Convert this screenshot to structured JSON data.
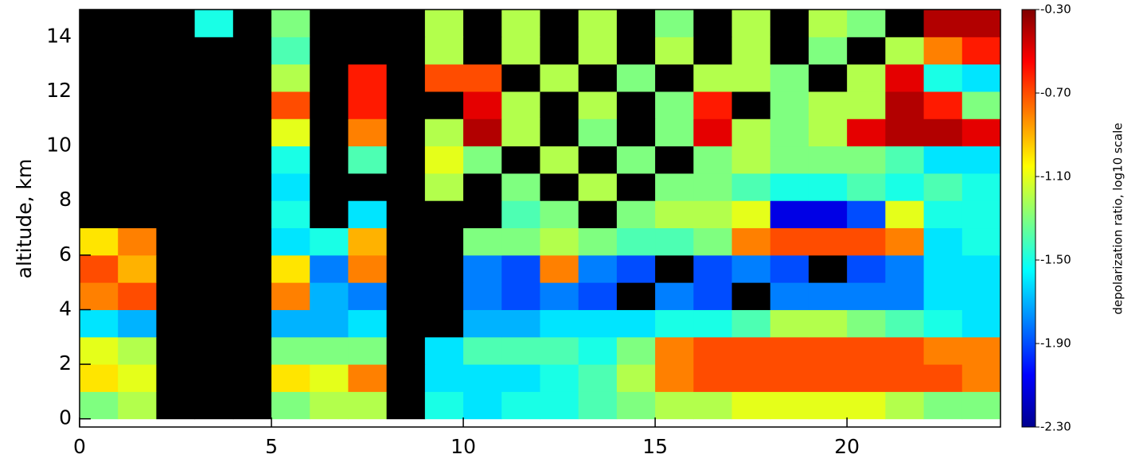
{
  "chart_data": {
    "type": "heatmap",
    "ylabel": "altitude, km",
    "colorbar_label": "depolarization ratio, log10 scale",
    "x_bins": [
      0,
      1,
      2,
      3,
      4,
      5,
      6,
      7,
      8,
      9,
      10,
      11,
      12,
      13,
      14,
      15,
      16,
      17,
      18,
      19,
      20,
      21,
      22,
      23,
      24
    ],
    "y_bins": [
      0,
      1,
      2,
      3,
      4,
      5,
      6,
      7,
      8,
      9,
      10,
      11,
      12,
      13,
      14,
      15
    ],
    "xlim": [
      0,
      24
    ],
    "ylim": [
      -0.3,
      15
    ],
    "xticks": [
      0,
      5,
      10,
      15,
      20
    ],
    "yticks": [
      0,
      2,
      4,
      6,
      8,
      10,
      12,
      14
    ],
    "zlim": [
      -2.3,
      -0.3
    ],
    "zticks": [
      {
        "value": -2.3,
        "label": "-2.30"
      },
      {
        "value": -1.9,
        "label": "-1.90"
      },
      {
        "value": -1.5,
        "label": "-1.50"
      },
      {
        "value": -1.1,
        "label": "-1.10"
      },
      {
        "value": -0.7,
        "label": "-0.70"
      },
      {
        "value": -0.3,
        "label": "-0.30"
      }
    ],
    "colormap": "jet",
    "missing_color": "#000000",
    "z": [
      [
        -1.3,
        -1.2,
        null,
        null,
        null,
        -1.3,
        -1.2,
        -1.2,
        null,
        -1.5,
        -1.6,
        -1.5,
        -1.5,
        -1.4,
        -1.3,
        -1.2,
        -1.2,
        -1.1,
        -1.1,
        -1.1,
        -1.1,
        -1.2,
        -1.3,
        -1.3
      ],
      [
        -1.0,
        -1.1,
        null,
        null,
        null,
        -1.0,
        -1.1,
        -0.8,
        null,
        -1.6,
        -1.6,
        -1.6,
        -1.5,
        -1.4,
        -1.2,
        -0.8,
        -0.7,
        -0.7,
        -0.7,
        -0.7,
        -0.7,
        -0.7,
        -0.7,
        -0.8
      ],
      [
        -1.1,
        -1.2,
        null,
        null,
        null,
        -1.3,
        -1.3,
        -1.3,
        null,
        -1.6,
        -1.4,
        -1.4,
        -1.4,
        -1.5,
        -1.3,
        -0.8,
        -0.7,
        -0.7,
        -0.7,
        -0.7,
        -0.7,
        -0.7,
        -0.8,
        -0.8
      ],
      [
        -1.6,
        -1.7,
        null,
        null,
        null,
        -1.7,
        -1.7,
        -1.6,
        null,
        null,
        -1.7,
        -1.7,
        -1.6,
        -1.6,
        -1.6,
        -1.5,
        -1.5,
        -1.4,
        -1.2,
        -1.2,
        -1.3,
        -1.4,
        -1.5,
        -1.6
      ],
      [
        -0.8,
        -0.7,
        null,
        null,
        null,
        -0.8,
        -1.7,
        -1.8,
        null,
        null,
        -1.8,
        -1.9,
        -1.8,
        -1.9,
        null,
        -1.8,
        -1.9,
        null,
        -1.8,
        -1.8,
        -1.8,
        -1.8,
        -1.6,
        -1.6
      ],
      [
        -0.7,
        -0.9,
        null,
        null,
        null,
        -1.0,
        -1.8,
        -0.8,
        null,
        null,
        -1.8,
        -1.9,
        -0.8,
        -1.8,
        -1.9,
        null,
        -1.9,
        -1.8,
        -1.9,
        null,
        -1.9,
        -1.8,
        -1.6,
        -1.6
      ],
      [
        -1.0,
        -0.8,
        null,
        null,
        null,
        -1.6,
        -1.5,
        -0.9,
        null,
        null,
        -1.3,
        -1.3,
        -1.2,
        -1.3,
        -1.4,
        -1.4,
        -1.3,
        -0.8,
        -0.7,
        -0.7,
        -0.7,
        -0.8,
        -1.6,
        -1.5
      ],
      [
        null,
        null,
        null,
        null,
        null,
        -1.5,
        null,
        -1.6,
        null,
        null,
        null,
        -1.4,
        -1.3,
        null,
        -1.3,
        -1.2,
        -1.2,
        -1.1,
        -2.1,
        -2.1,
        -1.9,
        -1.1,
        -1.5,
        -1.5
      ],
      [
        null,
        null,
        null,
        null,
        null,
        -1.6,
        null,
        null,
        null,
        -1.2,
        null,
        -1.3,
        null,
        -1.2,
        null,
        -1.3,
        -1.3,
        -1.4,
        -1.5,
        -1.5,
        -1.4,
        -1.5,
        -1.4,
        -1.5
      ],
      [
        null,
        null,
        null,
        null,
        null,
        -1.5,
        null,
        -1.4,
        null,
        -1.1,
        -1.3,
        null,
        -1.2,
        null,
        -1.3,
        null,
        -1.3,
        -1.2,
        -1.3,
        -1.3,
        -1.3,
        -1.4,
        -1.6,
        -1.6
      ],
      [
        null,
        null,
        null,
        null,
        null,
        -1.1,
        null,
        -0.8,
        null,
        -1.2,
        -0.4,
        -1.2,
        null,
        -1.3,
        null,
        -1.3,
        -0.5,
        -1.2,
        -1.3,
        -1.2,
        -0.5,
        -0.4,
        -0.4,
        -0.5
      ],
      [
        null,
        null,
        null,
        null,
        null,
        -0.7,
        null,
        -0.6,
        null,
        null,
        -0.5,
        -1.2,
        null,
        -1.2,
        null,
        -1.3,
        -0.6,
        null,
        -1.3,
        -1.2,
        -1.2,
        -0.4,
        -0.6,
        -1.3
      ],
      [
        null,
        null,
        null,
        null,
        null,
        -1.2,
        null,
        -0.6,
        null,
        -0.7,
        -0.7,
        null,
        -1.2,
        null,
        -1.3,
        null,
        -1.2,
        -1.2,
        -1.3,
        null,
        -1.2,
        -0.5,
        -1.5,
        -1.6
      ],
      [
        null,
        null,
        null,
        null,
        null,
        -1.4,
        null,
        null,
        null,
        -1.2,
        null,
        -1.2,
        null,
        -1.2,
        null,
        -1.2,
        null,
        -1.2,
        null,
        -1.3,
        null,
        -1.2,
        -0.8,
        -0.6
      ],
      [
        null,
        null,
        null,
        -1.5,
        null,
        -1.3,
        null,
        null,
        null,
        -1.2,
        null,
        -1.2,
        null,
        -1.2,
        null,
        -1.3,
        null,
        -1.2,
        null,
        -1.2,
        -1.3,
        null,
        -0.4,
        -0.4
      ]
    ]
  }
}
